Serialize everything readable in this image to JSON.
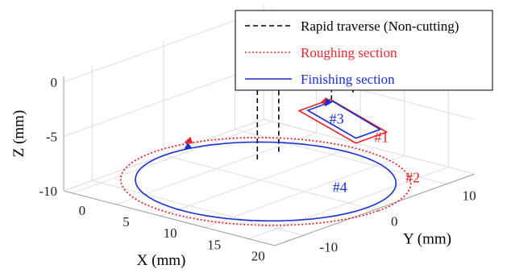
{
  "chart_data": {
    "type": "line",
    "projection": "3d",
    "axes": {
      "x": {
        "label": "X (mm)",
        "ticks": [
          0,
          5,
          10,
          15,
          20
        ],
        "range": [
          -1,
          23
        ]
      },
      "y": {
        "label": "Y (mm)",
        "ticks": [
          -10,
          0,
          10
        ],
        "range": [
          -14,
          14
        ]
      },
      "z": {
        "label": "Z (mm)",
        "ticks": [
          -10,
          -5,
          0
        ],
        "range": [
          -10,
          0.5
        ]
      }
    },
    "grid": true,
    "legend": {
      "position": "top-right",
      "entries": [
        {
          "label": "Rapid traverse (Non-cutting)",
          "style": "dashed",
          "color": "#000000"
        },
        {
          "label": "Roughing section",
          "style": "dotted",
          "color": "#e8242a"
        },
        {
          "label": "Finishing section",
          "style": "solid",
          "color": "#1a2fd1"
        }
      ]
    },
    "annotations": [
      {
        "text": "#1",
        "color": "#e8242a",
        "at": [
          20.5,
          3.0,
          -5.0
        ]
      },
      {
        "text": "#2",
        "color": "#e8242a",
        "at": [
          20.0,
          8.0,
          -10.0
        ]
      },
      {
        "text": "#3",
        "color": "#1a2fd1",
        "at": [
          15.4,
          3.0,
          -4.4
        ]
      },
      {
        "text": "#4",
        "color": "#1a2fd1",
        "at": [
          17.0,
          1.5,
          -10.0
        ]
      }
    ],
    "series": [
      {
        "name": "Rapid traverse (Non-cutting)",
        "style": "dashed",
        "color": "#000000",
        "polylines": [
          [
            [
              12,
              7.5,
              -4
            ],
            [
              12,
              7.5,
              0.5
            ]
          ],
          [
            [
              12,
              10.5,
              -4
            ],
            [
              12,
              10.5,
              0.5
            ]
          ],
          [
            [
              6,
              4.5,
              -10
            ],
            [
              6,
              4.5,
              0.5
            ]
          ],
          [
            [
              6,
              7.5,
              -10
            ],
            [
              6,
              7.5,
              0.5
            ]
          ]
        ],
        "solid_polylines": [
          [
            [
              6,
              4.5,
              0.5
            ],
            [
              6,
              7.5,
              0.5
            ],
            [
              12,
              7.5,
              0.5
            ],
            [
              12,
              10.5,
              0.5
            ]
          ]
        ]
      },
      {
        "name": "Roughing section",
        "style": "solid",
        "color": "#e8242a",
        "outline": [
          [
            11.8,
            7.6,
            -4
          ],
          [
            21.5,
            3.5,
            -4
          ],
          [
            21.5,
            -0.8,
            -4
          ],
          [
            11.8,
            3.2,
            -4
          ]
        ],
        "arrow": {
          "at": [
            11.8,
            6.6,
            -4
          ],
          "direction": [
            0,
            -1,
            0
          ]
        }
      },
      {
        "name": "Finishing section",
        "style": "solid",
        "color": "#1a2fd1",
        "outline": [
          [
            12.3,
            7.3,
            -4
          ],
          [
            20.6,
            3.7,
            -4
          ],
          [
            20.6,
            0.3,
            -4
          ],
          [
            12.3,
            3.8,
            -4
          ]
        ],
        "arrow": {
          "at": [
            12.3,
            6.5,
            -4
          ],
          "direction": [
            0.5,
            -1,
            0
          ]
        }
      },
      {
        "name": "Roughing section",
        "style": "dotted",
        "color": "#e8242a",
        "circle": {
          "center": [
            10.6,
            0,
            -10
          ],
          "radius": 12.8
        },
        "arrow": {
          "at": [
            -1.9,
            4.5,
            -10
          ],
          "direction": [
            0,
            -1,
            0
          ]
        }
      },
      {
        "name": "Finishing section",
        "style": "solid",
        "color": "#1a2fd1",
        "circle": {
          "center": [
            10.6,
            0,
            -10
          ],
          "radius": 11.5
        },
        "arrow": {
          "at": [
            -0.8,
            3.0,
            -10
          ],
          "direction": [
            0.3,
            -1,
            0
          ]
        }
      }
    ]
  }
}
